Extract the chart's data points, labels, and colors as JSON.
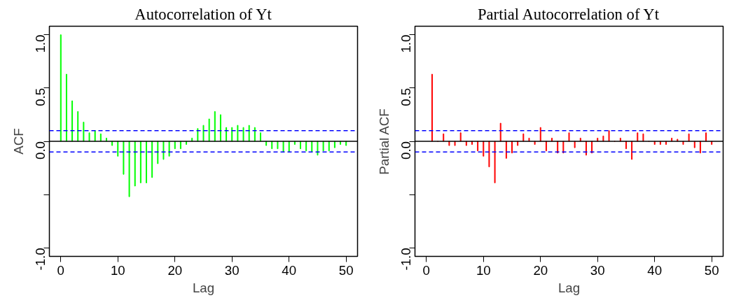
{
  "chart_data": [
    {
      "type": "bar",
      "title": "Autocorrelation of Yt",
      "xlabel": "Lag",
      "ylabel": "ACF",
      "x": [
        0,
        1,
        2,
        3,
        4,
        5,
        6,
        7,
        8,
        9,
        10,
        11,
        12,
        13,
        14,
        15,
        16,
        17,
        18,
        19,
        20,
        21,
        22,
        23,
        24,
        25,
        26,
        27,
        28,
        29,
        30,
        31,
        32,
        33,
        34,
        35,
        36,
        37,
        38,
        39,
        40,
        41,
        42,
        43,
        44,
        45,
        46,
        47,
        48,
        49,
        50
      ],
      "series": [
        {
          "color": "#00ff00",
          "values": [
            1.0,
            0.63,
            0.38,
            0.28,
            0.18,
            0.08,
            0.1,
            0.07,
            0.03,
            -0.04,
            -0.14,
            -0.31,
            -0.52,
            -0.42,
            -0.39,
            -0.39,
            -0.34,
            -0.21,
            -0.17,
            -0.14,
            -0.07,
            -0.07,
            -0.03,
            0.03,
            0.12,
            0.15,
            0.21,
            0.28,
            0.25,
            0.13,
            0.13,
            0.15,
            0.13,
            0.15,
            0.13,
            0.08,
            -0.04,
            -0.07,
            -0.07,
            -0.1,
            -0.1,
            -0.03,
            -0.07,
            -0.09,
            -0.1,
            -0.13,
            -0.09,
            -0.09,
            -0.06,
            -0.03,
            -0.04
          ]
        }
      ],
      "xlim": [
        -2,
        52
      ],
      "ylim": [
        -1.08,
        1.08
      ],
      "xticks": [
        0,
        10,
        20,
        30,
        40,
        50
      ],
      "yticks": [
        {
          "value": -1.0,
          "label": "-1.0"
        },
        {
          "value": -0.5,
          "label": null
        },
        {
          "value": 0.0,
          "label": "0.0"
        },
        {
          "value": 0.5,
          "label": "0.5"
        },
        {
          "value": 1.0,
          "label": "1.0"
        }
      ],
      "ref_lines": [
        {
          "axis": "y",
          "value": 0,
          "color": "#000000",
          "line_style": "solid"
        },
        {
          "axis": "y",
          "value": 0.1,
          "color": "#0000ff",
          "line_style": "dashed"
        },
        {
          "axis": "y",
          "value": -0.1,
          "color": "#0000ff",
          "line_style": "dashed"
        }
      ],
      "grid": false
    },
    {
      "type": "bar",
      "title": "Partial Autocorrelation of Yt",
      "xlabel": "Lag",
      "ylabel": "Partial ACF",
      "x": [
        1,
        2,
        3,
        4,
        5,
        6,
        7,
        8,
        9,
        10,
        11,
        12,
        13,
        14,
        15,
        16,
        17,
        18,
        19,
        20,
        21,
        22,
        23,
        24,
        25,
        26,
        27,
        28,
        29,
        30,
        31,
        32,
        33,
        34,
        35,
        36,
        37,
        38,
        39,
        40,
        41,
        42,
        43,
        44,
        45,
        46,
        47,
        48,
        49,
        50
      ],
      "series": [
        {
          "color": "#ff0000",
          "values": [
            0.63,
            0.0,
            0.07,
            -0.04,
            -0.04,
            0.08,
            -0.04,
            -0.03,
            -0.09,
            -0.14,
            -0.24,
            -0.39,
            0.17,
            -0.16,
            -0.11,
            -0.04,
            0.07,
            0.03,
            -0.03,
            0.13,
            -0.09,
            0.03,
            -0.11,
            -0.11,
            0.08,
            -0.06,
            0.03,
            -0.13,
            -0.11,
            0.03,
            0.05,
            0.1,
            0.0,
            0.03,
            -0.07,
            -0.17,
            0.08,
            0.07,
            0.0,
            -0.03,
            -0.03,
            -0.03,
            0.03,
            0.02,
            -0.03,
            0.07,
            -0.06,
            -0.11,
            0.08,
            -0.03
          ]
        }
      ],
      "xlim": [
        -2,
        52
      ],
      "ylim": [
        -1.08,
        1.08
      ],
      "xticks": [
        0,
        10,
        20,
        30,
        40,
        50
      ],
      "yticks": [
        {
          "value": -1.0,
          "label": "-1.0"
        },
        {
          "value": -0.5,
          "label": null
        },
        {
          "value": 0.0,
          "label": "0.0"
        },
        {
          "value": 0.5,
          "label": "0.5"
        },
        {
          "value": 1.0,
          "label": "1.0"
        }
      ],
      "ref_lines": [
        {
          "axis": "y",
          "value": 0,
          "color": "#000000",
          "line_style": "solid"
        },
        {
          "axis": "y",
          "value": 0.1,
          "color": "#0000ff",
          "line_style": "dashed"
        },
        {
          "axis": "y",
          "value": -0.1,
          "color": "#0000ff",
          "line_style": "dashed"
        }
      ],
      "grid": false
    }
  ]
}
